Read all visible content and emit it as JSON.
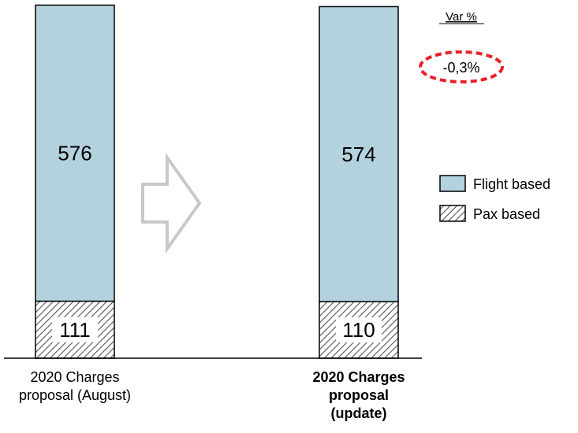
{
  "chart_data": {
    "type": "bar",
    "stacked": true,
    "categories": [
      [
        "2020 Charges",
        "proposal (August)"
      ],
      [
        "2020 Charges",
        "proposal",
        "(update)"
      ]
    ],
    "category_bold": [
      false,
      true
    ],
    "series": [
      {
        "name": "Pax based",
        "values": [
          111,
          110
        ],
        "pattern": "hatch",
        "color": "#ffffff"
      },
      {
        "name": "Flight based",
        "values": [
          576,
          574
        ],
        "color": "#b4d2de"
      }
    ],
    "totals": [
      687,
      684
    ],
    "totals_bold": [
      false,
      true
    ],
    "variation": {
      "header": "Var %",
      "value": "-0,3%",
      "highlight_color": "#e8202a"
    },
    "legend_position": "right",
    "legend_order": [
      1,
      0
    ],
    "ylim": [
      0,
      700
    ],
    "title": "",
    "xlabel": "",
    "ylabel": "",
    "grid": false,
    "arrow_icon": "right-arrow-outline-icon"
  }
}
